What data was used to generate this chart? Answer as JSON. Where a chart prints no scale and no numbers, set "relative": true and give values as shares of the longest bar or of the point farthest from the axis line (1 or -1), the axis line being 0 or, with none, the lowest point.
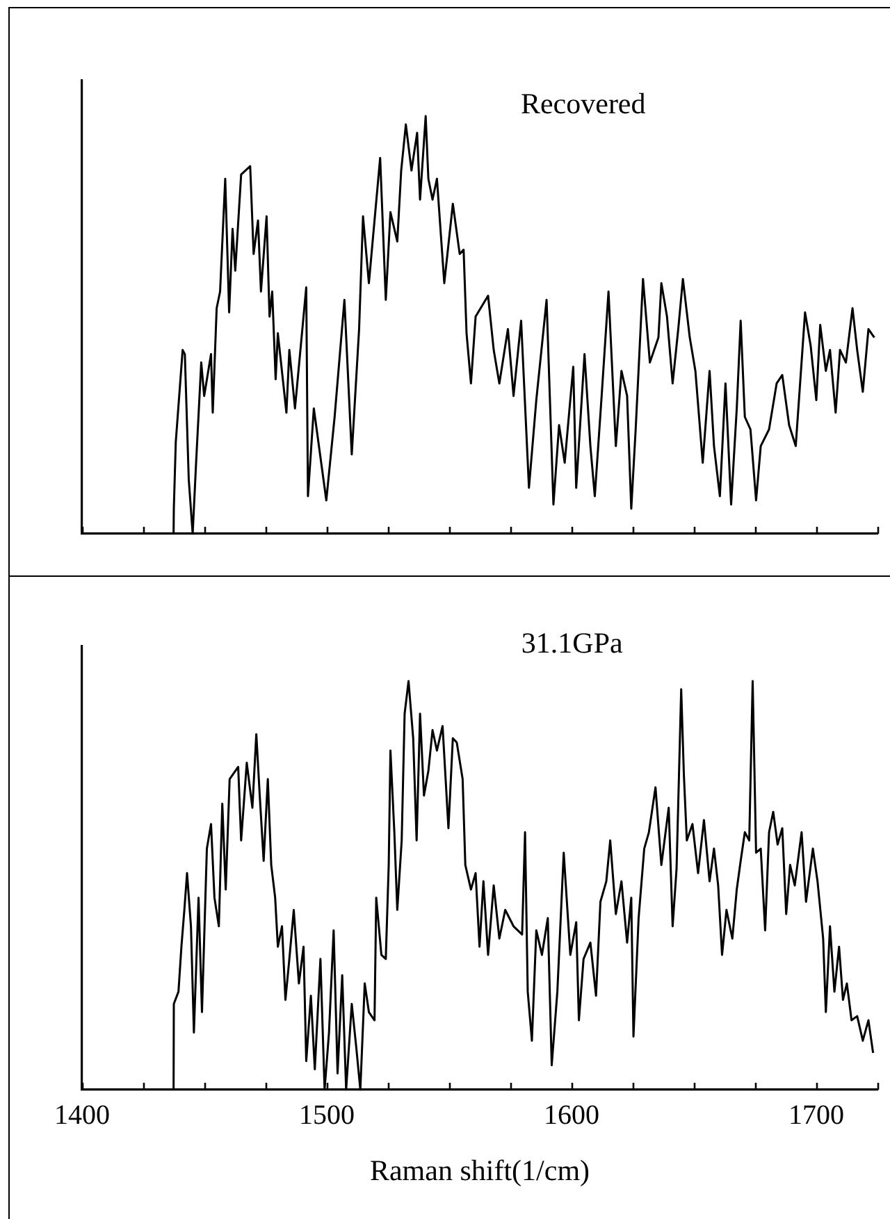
{
  "chart_data": [
    {
      "type": "line",
      "relative": true,
      "tick_labels": false,
      "xlim": [
        1400,
        1725
      ],
      "xticks": [
        1400,
        {
          "value": 1425,
          "label": null
        },
        {
          "value": 1450,
          "label": null
        },
        {
          "value": 1475,
          "label": null
        },
        1500,
        {
          "value": 1525,
          "label": null
        },
        {
          "value": 1550,
          "label": null
        },
        {
          "value": 1575,
          "label": null
        },
        1600,
        {
          "value": 1625,
          "label": null
        },
        {
          "value": 1650,
          "label": null
        },
        {
          "value": 1675,
          "label": null
        },
        1700,
        {
          "value": 1725,
          "label": null
        }
      ],
      "x": [
        1437.4,
        1437.5,
        1438.3,
        1441.1,
        1442.0,
        1443.6,
        1445.2,
        1446.6,
        1448.7,
        1449.9,
        1452.7,
        1453.4,
        1455.0,
        1456.4,
        1458.5,
        1460.1,
        1461.5,
        1462.6,
        1465.0,
        1468.7,
        1470.1,
        1471.9,
        1473.1,
        1475.4,
        1476.6,
        1477.7,
        1479.1,
        1480.0,
        1483.5,
        1484.7,
        1487.0,
        1491.6,
        1492.3,
        1494.7,
        1499.8,
        1503.2,
        1507.2,
        1510.2,
        1513.2,
        1514.8,
        1517.2,
        1521.8,
        1524.1,
        1526.0,
        1528.8,
        1530.4,
        1532.3,
        1534.6,
        1536.9,
        1538.1,
        1540.4,
        1541.5,
        1543.2,
        1545.0,
        1548.0,
        1551.5,
        1554.3,
        1555.9,
        1557.1,
        1558.9,
        1560.8,
        1565.9,
        1568.2,
        1570.5,
        1574.0,
        1576.3,
        1579.4,
        1582.6,
        1585.6,
        1589.8,
        1592.6,
        1594.9,
        1597.2,
        1600.7,
        1601.9,
        1605.3,
        1607.7,
        1609.5,
        1612.3,
        1615.1,
        1618.1,
        1620.4,
        1622.7,
        1624.4,
        1626.2,
        1629.2,
        1632.0,
        1635.5,
        1636.7,
        1639.0,
        1641.3,
        1643.6,
        1645.5,
        1648.3,
        1650.6,
        1653.6,
        1656.4,
        1658.2,
        1660.6,
        1662.9,
        1665.2,
        1667.5,
        1669.1,
        1670.8,
        1673.1,
        1675.4,
        1677.3,
        1680.7,
        1683.8,
        1686.1,
        1688.9,
        1691.6,
        1695.4,
        1697.7,
        1700.0,
        1701.6,
        1703.9,
        1705.6,
        1707.9,
        1709.7,
        1712.1,
        1714.8,
        1716.7,
        1719.0,
        1721.3,
        1723.7
      ],
      "series": [
        {
          "name": "Recovered",
          "color": "#000000",
          "values": [
            0,
            0.06,
            0.22,
            0.44,
            0.43,
            0.13,
            0,
            0.17,
            0.41,
            0.33,
            0.43,
            0.29,
            0.54,
            0.58,
            0.85,
            0.53,
            0.73,
            0.63,
            0.86,
            0.88,
            0.67,
            0.75,
            0.58,
            0.76,
            0.52,
            0.58,
            0.37,
            0.48,
            0.29,
            0.44,
            0.3,
            0.59,
            0.09,
            0.3,
            0.08,
            0.28,
            0.56,
            0.19,
            0.49,
            0.76,
            0.6,
            0.9,
            0.56,
            0.77,
            0.7,
            0.87,
            0.98,
            0.87,
            0.96,
            0.8,
            1.0,
            0.85,
            0.8,
            0.85,
            0.6,
            0.79,
            0.67,
            0.68,
            0.48,
            0.36,
            0.52,
            0.57,
            0.44,
            0.36,
            0.49,
            0.33,
            0.51,
            0.11,
            0.32,
            0.56,
            0.07,
            0.26,
            0.17,
            0.4,
            0.11,
            0.43,
            0.21,
            0.09,
            0.33,
            0.58,
            0.21,
            0.39,
            0.33,
            0.06,
            0.25,
            0.61,
            0.41,
            0.47,
            0.6,
            0.52,
            0.36,
            0.49,
            0.61,
            0.47,
            0.39,
            0.17,
            0.39,
            0.21,
            0.09,
            0.36,
            0.07,
            0.3,
            0.51,
            0.28,
            0.25,
            0.08,
            0.21,
            0.25,
            0.36,
            0.38,
            0.26,
            0.21,
            0.53,
            0.45,
            0.32,
            0.5,
            0.39,
            0.44,
            0.29,
            0.44,
            0.41,
            0.54,
            0.44,
            0.34,
            0.49,
            0.47
          ]
        }
      ]
    },
    {
      "type": "line",
      "relative": true,
      "tick_labels": "x",
      "xlabel": "Raman shift(1/cm)",
      "xlim": [
        1400,
        1725
      ],
      "xticks": [
        1400,
        {
          "value": 1425,
          "label": null
        },
        {
          "value": 1450,
          "label": null
        },
        {
          "value": 1475,
          "label": null
        },
        1500,
        {
          "value": 1525,
          "label": null
        },
        {
          "value": 1550,
          "label": null
        },
        {
          "value": 1575,
          "label": null
        },
        1600,
        {
          "value": 1625,
          "label": null
        },
        {
          "value": 1650,
          "label": null
        },
        {
          "value": 1675,
          "label": null
        },
        1700,
        {
          "value": 1725,
          "label": null
        }
      ],
      "x": [
        1437.4,
        1437.5,
        1439.4,
        1440.6,
        1441.8,
        1442.9,
        1444.5,
        1445.7,
        1447.6,
        1449.0,
        1451.0,
        1452.7,
        1454.1,
        1455.9,
        1457.3,
        1458.7,
        1460.3,
        1463.8,
        1465.0,
        1467.3,
        1469.6,
        1471.2,
        1472.6,
        1474.2,
        1475.9,
        1477.3,
        1478.9,
        1480.0,
        1481.7,
        1483.1,
        1484.7,
        1486.5,
        1488.6,
        1490.5,
        1491.6,
        1493.5,
        1495.1,
        1497.4,
        1499.1,
        1500.9,
        1502.8,
        1504.4,
        1506.3,
        1507.9,
        1510.2,
        1512.1,
        1513.7,
        1515.5,
        1517.2,
        1519.5,
        1520.2,
        1522.3,
        1524.1,
        1525.3,
        1526.0,
        1527.6,
        1528.8,
        1530.6,
        1531.8,
        1533.4,
        1535.3,
        1536.7,
        1538.1,
        1539.7,
        1541.5,
        1543.2,
        1545.0,
        1547.3,
        1549.7,
        1551.5,
        1553.1,
        1555.5,
        1556.6,
        1558.9,
        1560.8,
        1562.4,
        1564.0,
        1565.9,
        1568.2,
        1570.5,
        1572.9,
        1576.3,
        1579.8,
        1581.0,
        1582.1,
        1583.8,
        1585.6,
        1587.9,
        1590.3,
        1591.9,
        1594.2,
        1596.8,
        1599.5,
        1601.9,
        1603.0,
        1604.9,
        1607.7,
        1610.0,
        1611.8,
        1614.2,
        1615.8,
        1618.1,
        1620.4,
        1622.7,
        1624.4,
        1625.3,
        1627.4,
        1629.7,
        1631.6,
        1634.3,
        1636.7,
        1639.7,
        1641.3,
        1642.9,
        1644.8,
        1645.9,
        1647.1,
        1649.4,
        1651.7,
        1654.1,
        1656.4,
        1658.2,
        1659.9,
        1661.5,
        1663.3,
        1665.7,
        1667.5,
        1669.1,
        1670.8,
        1672.6,
        1674.0,
        1675.4,
        1677.3,
        1679.1,
        1680.7,
        1682.4,
        1684.2,
        1686.1,
        1687.7,
        1689.3,
        1691.2,
        1694.0,
        1695.8,
        1698.6,
        1700.5,
        1702.8,
        1703.9,
        1705.6,
        1707.4,
        1709.3,
        1710.9,
        1712.5,
        1714.4,
        1716.7,
        1719.0,
        1721.3,
        1723.2
      ],
      "series": [
        {
          "name": "31.1GPa",
          "color": "#000000",
          "values": [
            0,
            0.21,
            0.24,
            0.35,
            0.44,
            0.53,
            0.4,
            0.14,
            0.47,
            0.19,
            0.59,
            0.65,
            0.47,
            0.4,
            0.7,
            0.49,
            0.76,
            0.79,
            0.61,
            0.8,
            0.69,
            0.87,
            0.72,
            0.56,
            0.76,
            0.55,
            0.47,
            0.35,
            0.4,
            0.22,
            0.32,
            0.44,
            0.26,
            0.35,
            0.07,
            0.23,
            0.05,
            0.32,
            0,
            0.14,
            0.39,
            0.04,
            0.28,
            0,
            0.21,
            0.1,
            0,
            0.26,
            0.19,
            0.17,
            0.47,
            0.33,
            0.32,
            0.55,
            0.83,
            0.63,
            0.44,
            0.61,
            0.92,
            1.0,
            0.86,
            0.61,
            0.92,
            0.72,
            0.78,
            0.88,
            0.83,
            0.89,
            0.64,
            0.86,
            0.85,
            0.76,
            0.55,
            0.49,
            0.53,
            0.35,
            0.51,
            0.33,
            0.5,
            0.37,
            0.44,
            0.4,
            0.38,
            0.63,
            0.24,
            0.12,
            0.39,
            0.33,
            0.42,
            0.06,
            0.24,
            0.58,
            0.33,
            0.41,
            0.17,
            0.32,
            0.36,
            0.23,
            0.46,
            0.51,
            0.61,
            0.43,
            0.51,
            0.36,
            0.47,
            0.13,
            0.42,
            0.59,
            0.63,
            0.74,
            0.55,
            0.69,
            0.4,
            0.54,
            0.98,
            0.77,
            0.61,
            0.65,
            0.53,
            0.66,
            0.51,
            0.59,
            0.5,
            0.33,
            0.44,
            0.37,
            0.49,
            0.56,
            0.63,
            0.61,
            1.0,
            0.58,
            0.59,
            0.39,
            0.63,
            0.68,
            0.6,
            0.64,
            0.43,
            0.55,
            0.5,
            0.63,
            0.46,
            0.59,
            0.51,
            0.37,
            0.19,
            0.4,
            0.24,
            0.35,
            0.22,
            0.26,
            0.17,
            0.18,
            0.12,
            0.17,
            0.09
          ]
        }
      ]
    }
  ]
}
